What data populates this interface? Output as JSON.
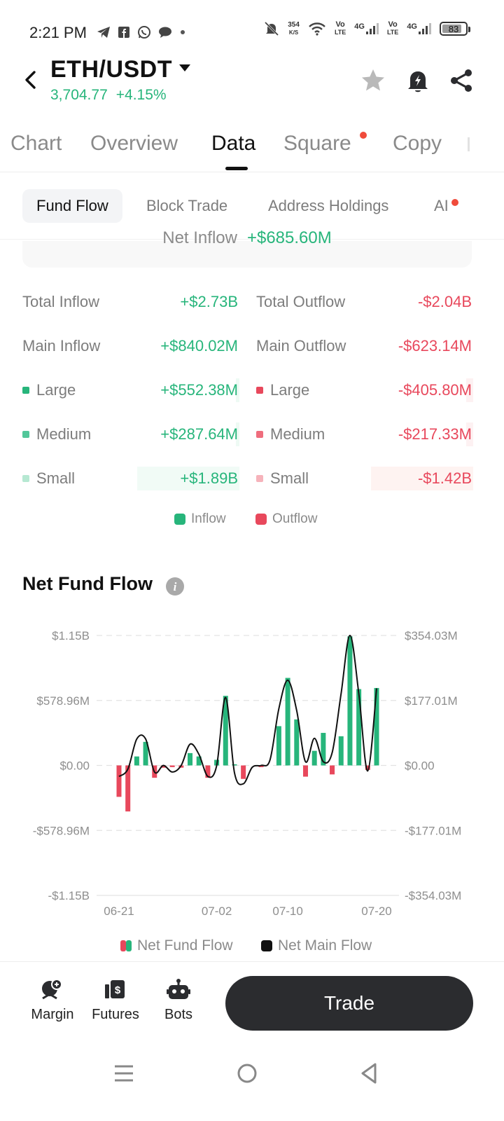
{
  "status_bar": {
    "time": "2:21 PM",
    "speed_value": "354",
    "speed_unit": "K/S",
    "net1_top": "Vo",
    "net1_bottom": "LTE",
    "net2": "4G",
    "net3_top": "Vo",
    "net3_bottom": "LTE",
    "net4": "4G",
    "battery": "83",
    "battery_level": 0.83
  },
  "header": {
    "pair": "ETH/USDT",
    "price": "3,704.77",
    "change": "+4.15%",
    "accent": "#27b57b"
  },
  "tabs": [
    {
      "label": "Chart"
    },
    {
      "label": "Overview"
    },
    {
      "label": "Data"
    },
    {
      "label": "Square"
    },
    {
      "label": "Copy"
    }
  ],
  "subtabs": [
    {
      "label": "Fund Flow"
    },
    {
      "label": "Block Trade"
    },
    {
      "label": "Address Holdings"
    },
    {
      "label": "AI"
    }
  ],
  "net_inflow_card": {
    "label": "Net Inflow",
    "value": "+$685.60M"
  },
  "flows": {
    "left": [
      {
        "label": "Total Inflow",
        "value": "+$2.73B"
      },
      {
        "label": "Main Inflow",
        "value": "+$840.02M"
      },
      {
        "label": "Large",
        "value": "+$552.38M"
      },
      {
        "label": "Medium",
        "value": "+$287.64M"
      },
      {
        "label": "Small",
        "value": "+$1.89B"
      }
    ],
    "right": [
      {
        "label": "Total Outflow",
        "value": "-$2.04B"
      },
      {
        "label": "Main Outflow",
        "value": "-$623.14M"
      },
      {
        "label": "Large",
        "value": "-$405.80M"
      },
      {
        "label": "Medium",
        "value": "-$217.33M"
      },
      {
        "label": "Small",
        "value": "-$1.42B"
      }
    ],
    "inflow_color": "#27b57b",
    "outflow_color": "#e8485c"
  },
  "flow_legend": {
    "inflow": "Inflow",
    "outflow": "Outflow"
  },
  "chart_section": {
    "title": "Net Fund Flow"
  },
  "chart_data": {
    "type": "bar",
    "title": "Net Fund Flow",
    "x_ticks": [
      "06-21",
      "07-02",
      "07-10",
      "07-20"
    ],
    "y_left_ticks": [
      "$1.15B",
      "$578.96M",
      "$0.00",
      "-$578.96M",
      "-$1.15B"
    ],
    "y_right_ticks": [
      "$354.03M",
      "$177.01M",
      "$0.00",
      "-$177.01M",
      "-$354.03M"
    ],
    "ylim_left": [
      -1157.92,
      1157.92
    ],
    "ylim_right": [
      -354.03,
      354.03
    ],
    "grid": true,
    "legend_position": "bottom",
    "dates": [
      "06-21",
      "06-22",
      "06-23",
      "06-24",
      "06-25",
      "06-26",
      "06-27",
      "06-28",
      "06-29",
      "06-30",
      "07-01",
      "07-02",
      "07-03",
      "07-04",
      "07-05",
      "07-06",
      "07-07",
      "07-08",
      "07-09",
      "07-10",
      "07-11",
      "07-12",
      "07-13",
      "07-14",
      "07-15",
      "07-16",
      "07-17",
      "07-18",
      "07-19",
      "07-20"
    ],
    "series": [
      {
        "name": "Net Fund Flow",
        "kind": "bar",
        "axis": "left",
        "values": [
          -280,
          -410,
          80,
          210,
          -110,
          -20,
          -15,
          -20,
          110,
          80,
          -110,
          50,
          620,
          10,
          -120,
          0,
          -15,
          0,
          350,
          780,
          410,
          -100,
          130,
          290,
          -80,
          260,
          1150,
          680,
          -40,
          690
        ]
      },
      {
        "name": "Net Main Flow",
        "kind": "line",
        "axis": "right",
        "values": [
          -30,
          -10,
          72,
          72,
          -18,
          0,
          -18,
          0,
          58,
          30,
          -30,
          0,
          185,
          -20,
          -50,
          -5,
          0,
          15,
          155,
          232,
          150,
          10,
          74,
          10,
          35,
          195,
          354,
          195,
          -15,
          210
        ]
      }
    ]
  },
  "chart_legend": {
    "bar": "Net Fund Flow",
    "line": "Net Main Flow"
  },
  "bottom_bar": {
    "margin": "Margin",
    "futures": "Futures",
    "bots": "Bots",
    "trade": "Trade"
  }
}
